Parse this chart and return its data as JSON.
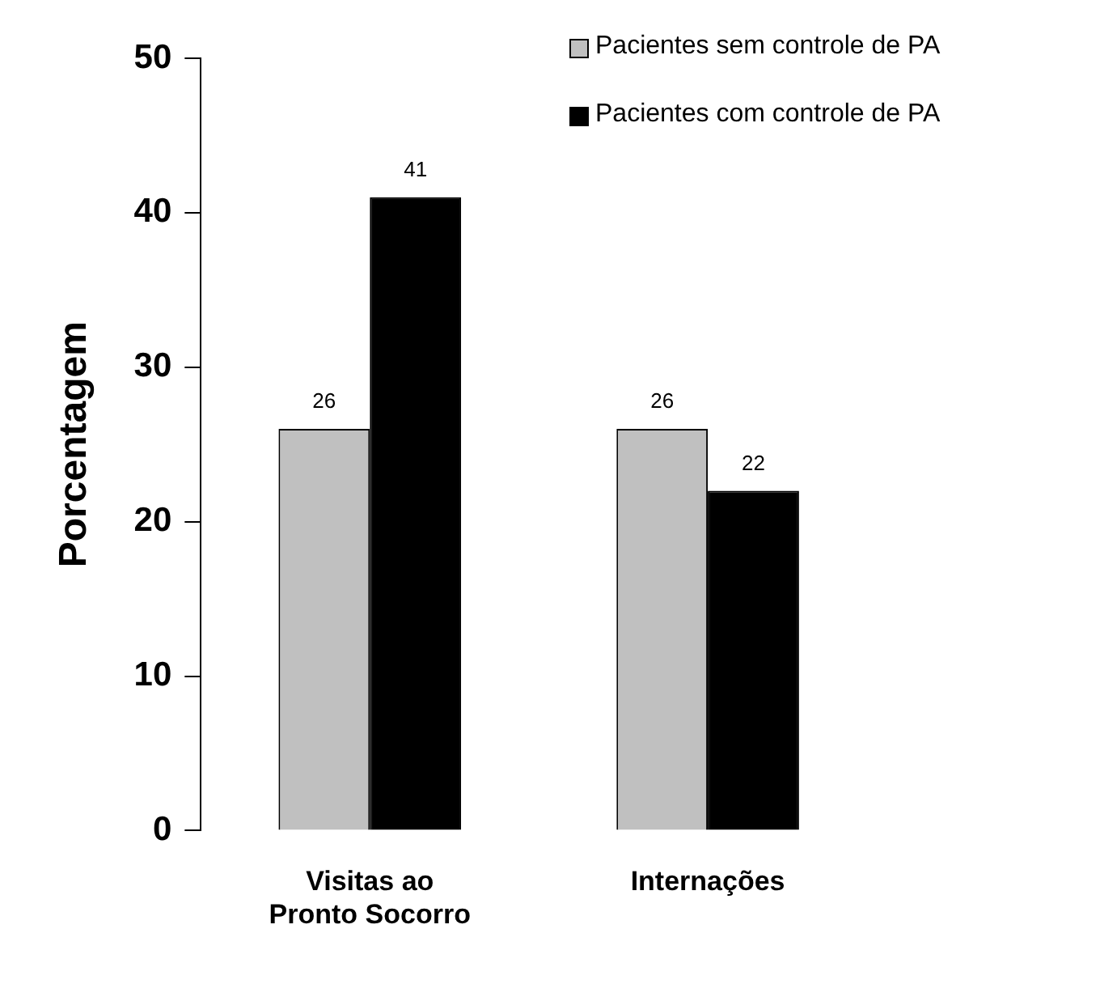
{
  "chart_data": {
    "type": "bar",
    "ylabel": "Porcentagem",
    "categories": [
      "Visitas ao Pronto Socorro",
      "Internações"
    ],
    "series": [
      {
        "name": "Pacientes sem controle de PA",
        "color": "#c0c0c0",
        "values": [
          26,
          26
        ]
      },
      {
        "name": "Pacientes com controle de PA",
        "color": "#000000",
        "values": [
          41,
          22
        ]
      }
    ],
    "ylim": [
      0,
      50
    ],
    "yticks": [
      0,
      10,
      20,
      30,
      40,
      50
    ],
    "data_labels": true,
    "legend": "top right",
    "grid": false
  }
}
